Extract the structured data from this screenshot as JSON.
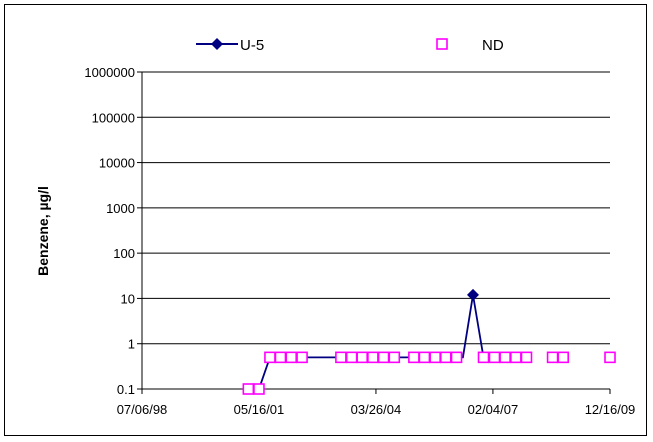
{
  "chart_data": {
    "type": "scatter",
    "title": "",
    "xlabel": "",
    "ylabel": "Benzene, µg/l",
    "y_scale": "log",
    "ylim": [
      0.1,
      1000000
    ],
    "xlim": [
      "1998-07-06",
      "2009-12-16"
    ],
    "grid": true,
    "legend": "top",
    "y_ticks": [
      "0.1",
      "1",
      "10",
      "100",
      "1000",
      "10000",
      "100000",
      "1000000"
    ],
    "x_ticks": [
      "07/06/98",
      "05/16/01",
      "03/26/04",
      "02/04/07",
      "12/16/09"
    ],
    "x_tick_dates": [
      "1998-07-06",
      "2001-05-16",
      "2004-03-26",
      "2007-02-04",
      "2009-12-16"
    ],
    "colors": {
      "U-5": "#000080",
      "ND": "#ff00ff"
    },
    "series": [
      {
        "name": "U-5",
        "marker": "diamond",
        "points": [
          {
            "x": "2001-05-16",
            "y": 0.1
          },
          {
            "x": "2001-08-22",
            "y": 0.5
          },
          {
            "x": "2006-05-12",
            "y": 0.5
          },
          {
            "x": "2006-08-10",
            "y": 12
          },
          {
            "x": "2006-11-12",
            "y": 0.5
          }
        ]
      },
      {
        "name": "ND",
        "marker": "open-square",
        "points": [
          {
            "x": "2001-02-10",
            "y": 0.1
          },
          {
            "x": "2001-05-16",
            "y": 0.1
          },
          {
            "x": "2001-08-22",
            "y": 0.5
          },
          {
            "x": "2001-11-24",
            "y": 0.5
          },
          {
            "x": "2002-02-28",
            "y": 0.5
          },
          {
            "x": "2002-06-05",
            "y": 0.5
          },
          {
            "x": "2003-05-18",
            "y": 0.5
          },
          {
            "x": "2003-08-22",
            "y": 0.5
          },
          {
            "x": "2003-11-24",
            "y": 0.5
          },
          {
            "x": "2004-02-28",
            "y": 0.5
          },
          {
            "x": "2004-06-02",
            "y": 0.5
          },
          {
            "x": "2004-09-06",
            "y": 0.5
          },
          {
            "x": "2005-02-28",
            "y": 0.5
          },
          {
            "x": "2005-06-02",
            "y": 0.5
          },
          {
            "x": "2005-09-06",
            "y": 0.5
          },
          {
            "x": "2005-12-10",
            "y": 0.5
          },
          {
            "x": "2006-03-16",
            "y": 0.5
          },
          {
            "x": "2006-11-12",
            "y": 0.5
          },
          {
            "x": "2007-02-18",
            "y": 0.5
          },
          {
            "x": "2007-05-24",
            "y": 0.5
          },
          {
            "x": "2007-08-28",
            "y": 0.5
          },
          {
            "x": "2007-12-01",
            "y": 0.5
          },
          {
            "x": "2008-07-21",
            "y": 0.5
          },
          {
            "x": "2008-10-24",
            "y": 0.5
          },
          {
            "x": "2009-12-16",
            "y": 0.5
          }
        ]
      }
    ]
  }
}
